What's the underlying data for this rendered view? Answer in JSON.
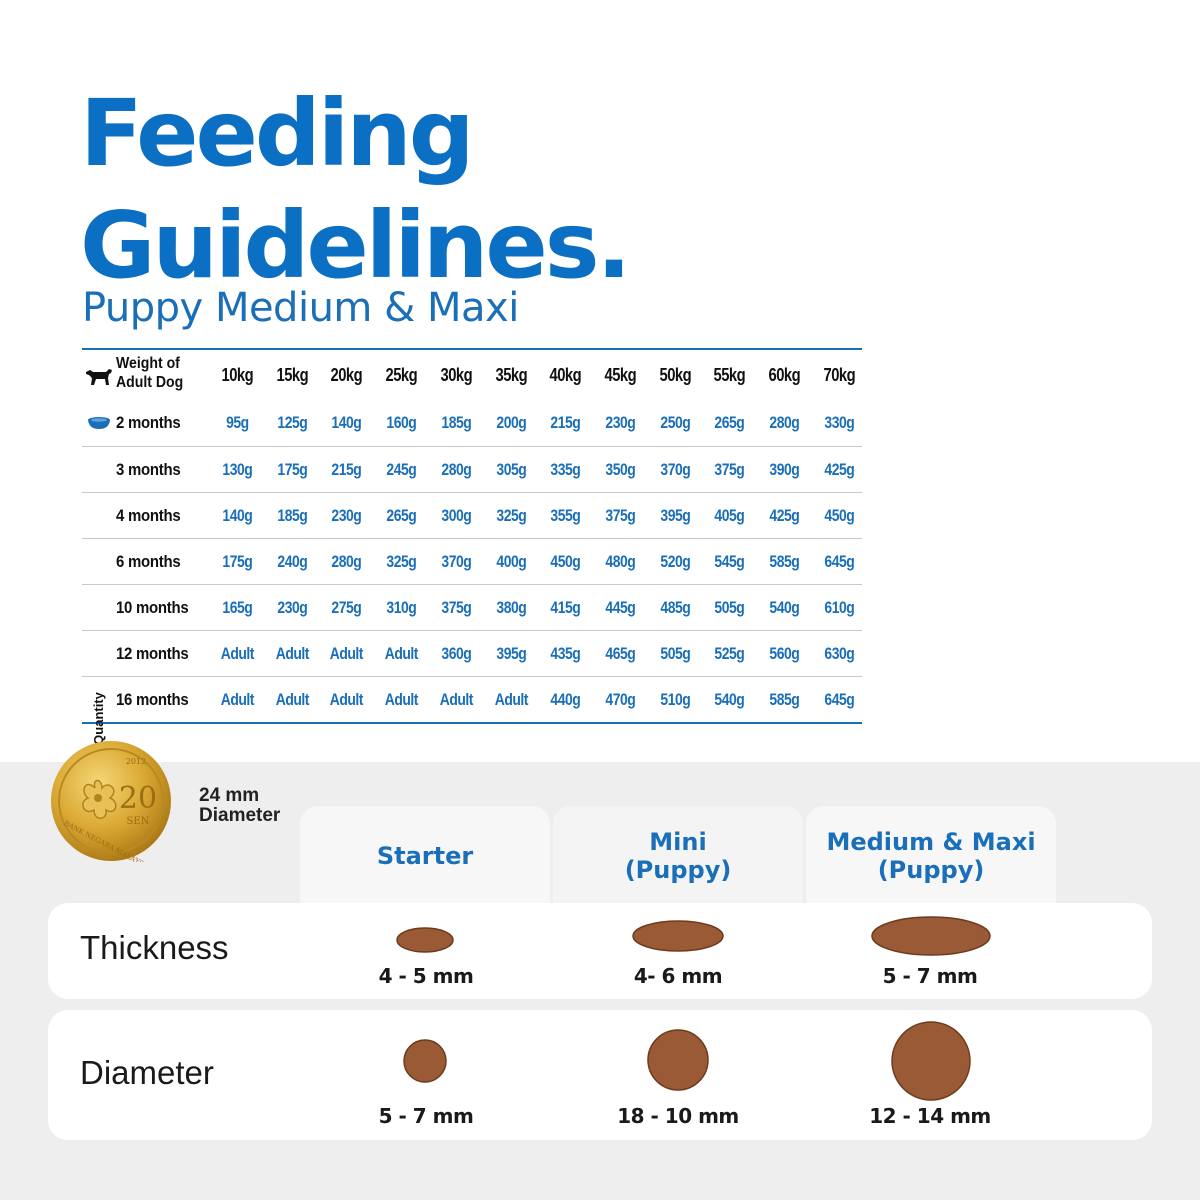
{
  "title": {
    "line1": "Feeding",
    "line2": "Guidelines."
  },
  "subtitle": "Puppy Medium & Maxi",
  "table": {
    "weight_header_line1": "Weight of",
    "weight_header_line2": "Adult Dog",
    "vertical_label": "Min-Max Recommended Daily Quantity",
    "weights": [
      "10kg",
      "15kg",
      "20kg",
      "25kg",
      "30kg",
      "35kg",
      "40kg",
      "45kg",
      "50kg",
      "55kg",
      "60kg",
      "70kg"
    ],
    "rows": [
      {
        "age": "2 months",
        "values": [
          "95g",
          "125g",
          "140g",
          "160g",
          "185g",
          "200g",
          "215g",
          "230g",
          "250g",
          "265g",
          "280g",
          "330g"
        ]
      },
      {
        "age": "3 months",
        "values": [
          "130g",
          "175g",
          "215g",
          "245g",
          "280g",
          "305g",
          "335g",
          "350g",
          "370g",
          "375g",
          "390g",
          "425g"
        ]
      },
      {
        "age": "4 months",
        "values": [
          "140g",
          "185g",
          "230g",
          "265g",
          "300g",
          "325g",
          "355g",
          "375g",
          "395g",
          "405g",
          "425g",
          "450g"
        ]
      },
      {
        "age": "6 months",
        "values": [
          "175g",
          "240g",
          "280g",
          "325g",
          "370g",
          "400g",
          "450g",
          "480g",
          "520g",
          "545g",
          "585g",
          "645g"
        ]
      },
      {
        "age": "10 months",
        "values": [
          "165g",
          "230g",
          "275g",
          "310g",
          "375g",
          "380g",
          "415g",
          "445g",
          "485g",
          "505g",
          "540g",
          "610g"
        ]
      },
      {
        "age": "12 months",
        "values": [
          "Adult",
          "Adult",
          "Adult",
          "Adult",
          "360g",
          "395g",
          "435g",
          "465g",
          "505g",
          "525g",
          "560g",
          "630g"
        ]
      },
      {
        "age": "16 months",
        "values": [
          "Adult",
          "Adult",
          "Adult",
          "Adult",
          "Adult",
          "Adult",
          "440g",
          "470g",
          "510g",
          "540g",
          "585g",
          "645g"
        ]
      }
    ]
  },
  "coin": {
    "value": "20",
    "unit": "SEN",
    "year": "2012",
    "inscription": "BANK NEGARA MALAYSIA",
    "caption_line1": "24 mm",
    "caption_line2": "Diameter"
  },
  "kibble": {
    "columns": [
      {
        "line1": "Starter",
        "line2": ""
      },
      {
        "line1": "Mini",
        "line2": "(Puppy)"
      },
      {
        "line1": "Medium & Maxi",
        "line2": "(Puppy)"
      }
    ],
    "thickness": {
      "label": "Thickness",
      "sizes": [
        "4 - 5 mm",
        "4- 6 mm",
        "5 - 7 mm"
      ]
    },
    "diameter": {
      "label": "Diameter",
      "sizes": [
        "5 - 7 mm",
        "18 - 10 mm",
        "12  - 14 mm"
      ]
    }
  },
  "colors": {
    "accent": "#0b6fc4",
    "table_blue": "#1a6fb8",
    "kibble_brown": "#9a5a35",
    "gray_bg": "#eeeeee"
  }
}
